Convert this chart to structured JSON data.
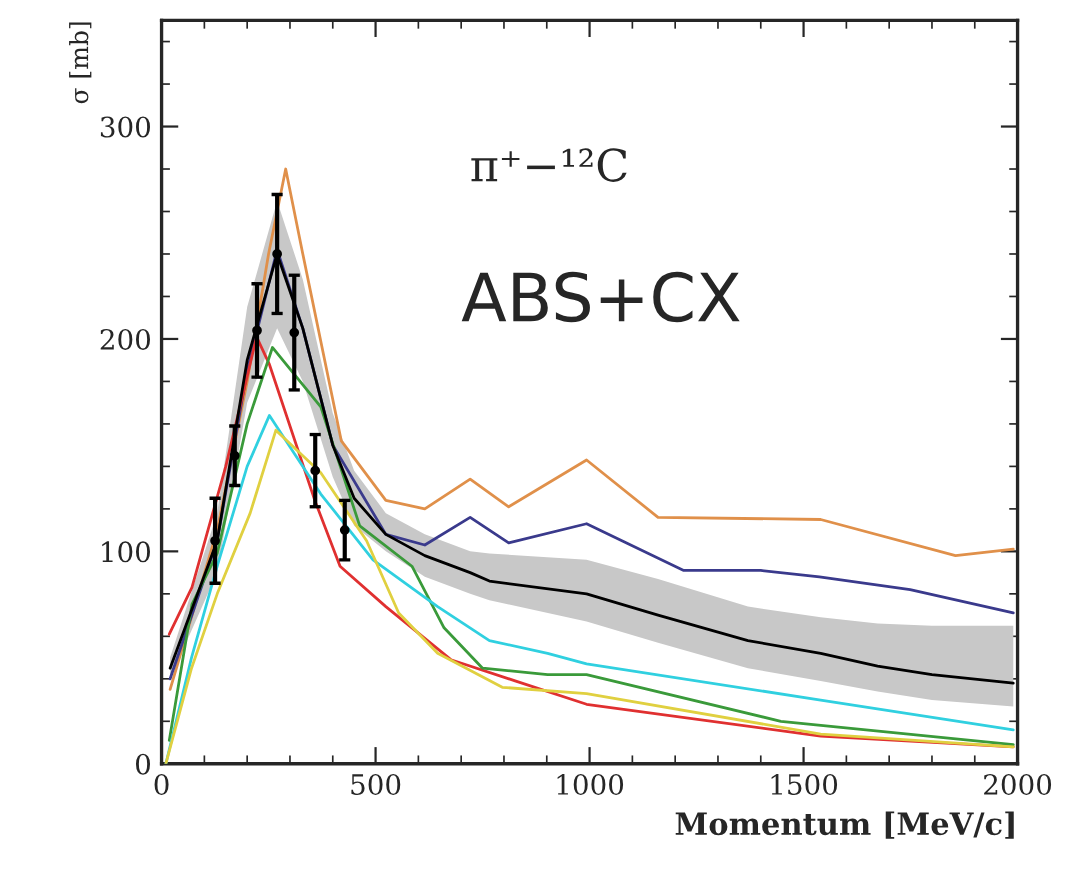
{
  "chart_data": {
    "type": "line",
    "xlabel": "Momentum [MeV/c]",
    "ylabel": "σ [mb]",
    "annotations": [
      "π⁺−¹²C",
      "ABS+CX"
    ],
    "xlim": [
      0,
      2000
    ],
    "ylim": [
      0,
      350
    ],
    "xticks": [
      0,
      500,
      1000,
      1500,
      2000
    ],
    "yticks": [
      0,
      100,
      200,
      300
    ],
    "grid": false,
    "legend": false,
    "marker": "none",
    "line_style": "solid",
    "series": [
      {
        "color": "#e0904a",
        "x": [
          20,
          130,
          200,
          250,
          290,
          330,
          420,
          524,
          615,
          721,
          811,
          993,
          1160,
          1540,
          1855,
          1990
        ],
        "values": [
          35,
          110,
          180,
          240,
          280,
          240,
          152,
          124,
          120,
          134,
          121,
          143,
          116,
          115,
          98,
          101
        ]
      },
      {
        "color": "#3a3a8c",
        "x": [
          20,
          130,
          200,
          270,
          330,
          400,
          524,
          615,
          721,
          811,
          993,
          1220,
          1400,
          1537,
          1749,
          1990
        ],
        "values": [
          40,
          105,
          185,
          242,
          205,
          150,
          108,
          103,
          116,
          104,
          113,
          91,
          91,
          88,
          82,
          71
        ]
      },
      {
        "color": "#e03030",
        "x": [
          18,
          71,
          150,
          222,
          252,
          358,
          417,
          524,
          676,
          826,
          993,
          1540,
          1990
        ],
        "values": [
          61,
          83,
          140,
          201,
          188,
          124,
          93,
          74,
          49,
          39,
          28,
          13,
          8
        ]
      },
      {
        "color": "#3a9a3a",
        "x": [
          18,
          71,
          130,
          200,
          259,
          372,
          463,
          585,
          660,
          750,
          902,
          993,
          1447,
          1990
        ],
        "values": [
          11,
          75,
          99,
          160,
          196,
          168,
          112,
          93,
          64,
          45,
          42,
          42,
          20,
          9
        ]
      },
      {
        "color": "#30d0e0",
        "x": [
          10,
          70,
          130,
          200,
          252,
          372,
          494,
          645,
          766,
          902,
          993,
          1540,
          1990
        ],
        "values": [
          0,
          50,
          93,
          140,
          164,
          127,
          96,
          74,
          58,
          52,
          47,
          30,
          16
        ]
      },
      {
        "color": "#e0d040",
        "x": [
          10,
          70,
          130,
          207,
          267,
          372,
          479,
          554,
          645,
          796,
          993,
          1540,
          1990
        ],
        "values": [
          0,
          45,
          80,
          118,
          157,
          137,
          105,
          71,
          52,
          36,
          33,
          14,
          8
        ]
      },
      {
        "color": "#000000",
        "x": [
          20,
          130,
          200,
          270,
          330,
          400,
          450,
          524,
          615,
          721,
          766,
          993,
          1160,
          1370,
          1540,
          1673,
          1800,
          1990
        ],
        "values": [
          45,
          105,
          190,
          240,
          205,
          150,
          125,
          108,
          98,
          90,
          86,
          80,
          70,
          58,
          52,
          46,
          42,
          38
        ],
        "lower": [
          40,
          90,
          170,
          205,
          180,
          135,
          112,
          100,
          88,
          80,
          77,
          67,
          57,
          45,
          39,
          34,
          30,
          27
        ],
        "upper": [
          50,
          118,
          215,
          265,
          228,
          165,
          138,
          118,
          108,
          100,
          99,
          96,
          87,
          74,
          69,
          66,
          65,
          65
        ]
      },
      {
        "type": "scatter",
        "marker": "circle",
        "color": "#000000",
        "x": [
          125,
          171,
          223,
          270,
          310,
          359,
          428
        ],
        "values": [
          105,
          145,
          204,
          240,
          203,
          138,
          110
        ],
        "errors": [
          20,
          14,
          22,
          28,
          27,
          17,
          14
        ]
      }
    ]
  }
}
